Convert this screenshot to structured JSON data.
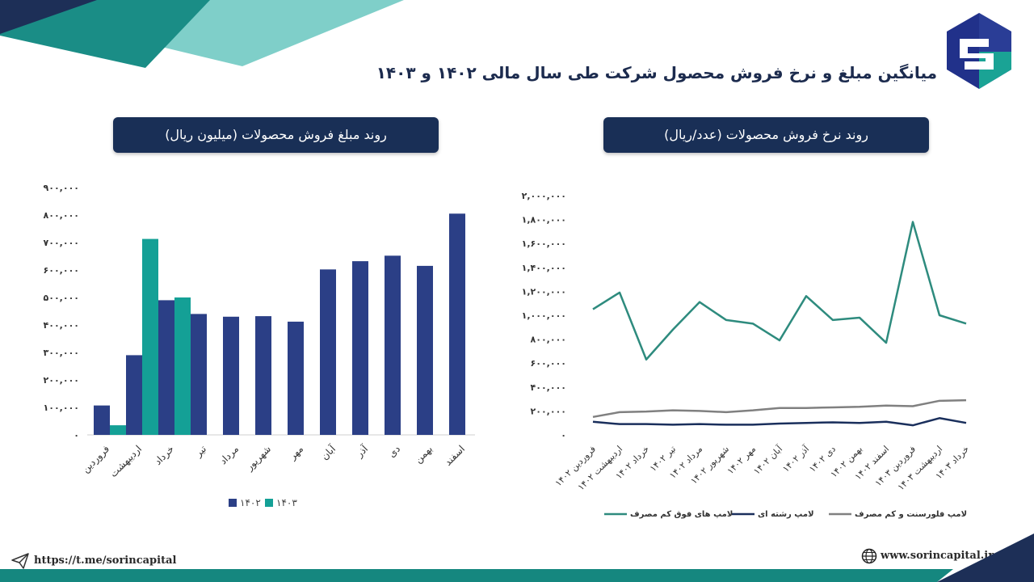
{
  "title": "میانگین مبلغ و نرخ فروش محصول شرکت طی سال مالی ۱۴۰۲ و ۱۴۰۳",
  "colors": {
    "navy": "#2b3f86",
    "teal": "#14a096",
    "dark_navy": "#192f56",
    "line_teal": "#2e8b7e",
    "line_navy": "#1a2f5c",
    "line_gray": "#808080"
  },
  "footer": {
    "telegram": "https://t.me/sorincapital",
    "website": "www.sorincapital.ir",
    "telegram_icon": "send-icon",
    "website_icon": "globe-icon"
  },
  "chart_data": [
    {
      "type": "bar",
      "title": "روند مبلغ فروش محصولات (میلیون ریال)",
      "categories": [
        "فروردین",
        "اردیبهشت",
        "خرداد",
        "تیر",
        "مرداد",
        "شهریور",
        "مهر",
        "آبان",
        "آذر",
        "دی",
        "بهمن",
        "اسفند"
      ],
      "series": [
        {
          "name": "۱۴۰۲",
          "color": "#2b3f86",
          "values": [
            107000,
            290000,
            490000,
            440000,
            430000,
            432000,
            412000,
            602000,
            632000,
            652000,
            615000,
            805000
          ]
        },
        {
          "name": "۱۴۰۳",
          "color": "#14a096",
          "values": [
            35000,
            713000,
            500000,
            null,
            null,
            null,
            null,
            null,
            null,
            null,
            null,
            null
          ]
        }
      ],
      "yticks": [
        "۰",
        "۱۰۰,۰۰۰",
        "۲۰۰,۰۰۰",
        "۳۰۰,۰۰۰",
        "۴۰۰,۰۰۰",
        "۵۰۰,۰۰۰",
        "۶۰۰,۰۰۰",
        "۷۰۰,۰۰۰",
        "۸۰۰,۰۰۰",
        "۹۰۰,۰۰۰"
      ],
      "ylim": [
        0,
        900000
      ],
      "grid": false,
      "legend_position": "bottom"
    },
    {
      "type": "line",
      "title": "روند نرخ فروش محصولات (عدد/ریال)",
      "categories": [
        "فروردین ۱۴۰۲",
        "اردیبهشت ۱۴۰۲",
        "خرداد ۱۴۰۲",
        "تیر ۱۴۰۲",
        "مرداد ۱۴۰۲",
        "شهریور ۱۴۰۲",
        "مهر ۱۴۰۲",
        "آبان ۱۴۰۲",
        "آذر ۱۴۰۲",
        "دی ۱۴۰۲",
        "بهمن ۱۴۰۲",
        "اسفند ۱۴۰۲",
        "فروردین ۱۴۰۳",
        "اردیبهشت ۱۴۰۳",
        "خرداد ۱۴۰۳"
      ],
      "series": [
        {
          "name": "لامپ های فوق کم مصرف",
          "color": "#2e8b7e",
          "values": [
            1050000,
            1190000,
            630000,
            880000,
            1110000,
            960000,
            930000,
            790000,
            1160000,
            960000,
            980000,
            770000,
            1780000,
            1000000,
            930000
          ]
        },
        {
          "name": "لامپ رشته ای",
          "color": "#1a2f5c",
          "values": [
            110000,
            90000,
            90000,
            85000,
            90000,
            85000,
            85000,
            95000,
            100000,
            105000,
            100000,
            110000,
            80000,
            140000,
            100000
          ]
        },
        {
          "name": "لامپ فلورسنت و کم مصرف",
          "color": "#808080",
          "values": [
            150000,
            190000,
            195000,
            205000,
            200000,
            190000,
            205000,
            225000,
            225000,
            230000,
            235000,
            245000,
            240000,
            285000,
            290000
          ]
        }
      ],
      "yticks": [
        "۰",
        "۲۰۰,۰۰۰",
        "۴۰۰,۰۰۰",
        "۶۰۰,۰۰۰",
        "۸۰۰,۰۰۰",
        "۱,۰۰۰,۰۰۰",
        "۱,۲۰۰,۰۰۰",
        "۱,۴۰۰,۰۰۰",
        "۱,۶۰۰,۰۰۰",
        "۱,۸۰۰,۰۰۰",
        "۲,۰۰۰,۰۰۰"
      ],
      "ylim": [
        0,
        2000000
      ],
      "grid": false,
      "legend_position": "bottom"
    }
  ]
}
